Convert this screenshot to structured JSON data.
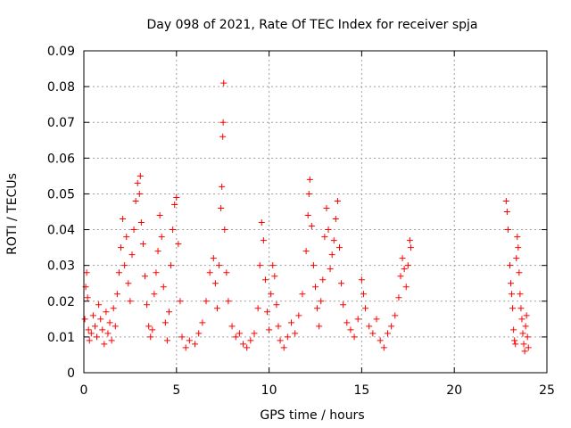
{
  "chart_data": {
    "type": "scatter",
    "title": "Day 098 of 2021, Rate Of TEC Index for receiver spja",
    "xlabel": "GPS time / hours",
    "ylabel": "ROTI / TECUs",
    "xlim": [
      0,
      25
    ],
    "ylim": [
      0,
      0.09
    ],
    "grid": true,
    "marker": "+",
    "colors": {
      "series": "#ff0000",
      "axes": "#000000",
      "grid": "#a0a0a0"
    },
    "x_ticks": [
      "0",
      "5",
      "10",
      "15",
      "20",
      "25"
    ],
    "y_ticks": [
      "0",
      "0.01",
      "0.02",
      "0.03",
      "0.04",
      "0.05",
      "0.06",
      "0.07",
      "0.08",
      "0.09"
    ],
    "series": [
      {
        "name": "ROTI",
        "points": [
          [
            0.05,
            0.015
          ],
          [
            0.1,
            0.024
          ],
          [
            0.15,
            0.028
          ],
          [
            0.2,
            0.021
          ],
          [
            0.25,
            0.012
          ],
          [
            0.3,
            0.009
          ],
          [
            0.4,
            0.011
          ],
          [
            0.5,
            0.016
          ],
          [
            0.6,
            0.013
          ],
          [
            0.7,
            0.01
          ],
          [
            0.8,
            0.019
          ],
          [
            0.9,
            0.015
          ],
          [
            1.0,
            0.012
          ],
          [
            1.1,
            0.008
          ],
          [
            1.2,
            0.017
          ],
          [
            1.3,
            0.011
          ],
          [
            1.4,
            0.014
          ],
          [
            1.5,
            0.009
          ],
          [
            1.6,
            0.018
          ],
          [
            1.7,
            0.013
          ],
          [
            1.8,
            0.022
          ],
          [
            1.9,
            0.028
          ],
          [
            2.0,
            0.035
          ],
          [
            2.1,
            0.043
          ],
          [
            2.2,
            0.03
          ],
          [
            2.3,
            0.038
          ],
          [
            2.4,
            0.025
          ],
          [
            2.5,
            0.02
          ],
          [
            2.6,
            0.033
          ],
          [
            2.7,
            0.04
          ],
          [
            2.8,
            0.048
          ],
          [
            2.9,
            0.053
          ],
          [
            3.0,
            0.05
          ],
          [
            3.05,
            0.055
          ],
          [
            3.1,
            0.042
          ],
          [
            3.2,
            0.036
          ],
          [
            3.3,
            0.027
          ],
          [
            3.4,
            0.019
          ],
          [
            3.5,
            0.013
          ],
          [
            3.6,
            0.01
          ],
          [
            3.7,
            0.012
          ],
          [
            3.8,
            0.022
          ],
          [
            3.9,
            0.028
          ],
          [
            4.0,
            0.034
          ],
          [
            4.1,
            0.044
          ],
          [
            4.2,
            0.038
          ],
          [
            4.3,
            0.024
          ],
          [
            4.4,
            0.014
          ],
          [
            4.5,
            0.009
          ],
          [
            4.6,
            0.017
          ],
          [
            4.7,
            0.03
          ],
          [
            4.8,
            0.04
          ],
          [
            4.9,
            0.047
          ],
          [
            5.0,
            0.049
          ],
          [
            5.1,
            0.036
          ],
          [
            5.2,
            0.02
          ],
          [
            5.3,
            0.01
          ],
          [
            5.5,
            0.007
          ],
          [
            5.7,
            0.009
          ],
          [
            6.0,
            0.008
          ],
          [
            6.2,
            0.011
          ],
          [
            6.4,
            0.014
          ],
          [
            6.6,
            0.02
          ],
          [
            6.8,
            0.028
          ],
          [
            7.0,
            0.032
          ],
          [
            7.1,
            0.025
          ],
          [
            7.2,
            0.018
          ],
          [
            7.3,
            0.03
          ],
          [
            7.4,
            0.046
          ],
          [
            7.45,
            0.052
          ],
          [
            7.5,
            0.066
          ],
          [
            7.52,
            0.07
          ],
          [
            7.55,
            0.081
          ],
          [
            7.6,
            0.04
          ],
          [
            7.7,
            0.028
          ],
          [
            7.8,
            0.02
          ],
          [
            8.0,
            0.013
          ],
          [
            8.2,
            0.01
          ],
          [
            8.4,
            0.011
          ],
          [
            8.6,
            0.008
          ],
          [
            8.8,
            0.007
          ],
          [
            9.0,
            0.009
          ],
          [
            9.2,
            0.011
          ],
          [
            9.4,
            0.018
          ],
          [
            9.5,
            0.03
          ],
          [
            9.6,
            0.042
          ],
          [
            9.7,
            0.037
          ],
          [
            9.8,
            0.026
          ],
          [
            9.9,
            0.017
          ],
          [
            10.0,
            0.012
          ],
          [
            10.1,
            0.022
          ],
          [
            10.2,
            0.03
          ],
          [
            10.3,
            0.027
          ],
          [
            10.4,
            0.019
          ],
          [
            10.5,
            0.013
          ],
          [
            10.6,
            0.009
          ],
          [
            10.8,
            0.007
          ],
          [
            11.0,
            0.01
          ],
          [
            11.2,
            0.014
          ],
          [
            11.4,
            0.011
          ],
          [
            11.6,
            0.016
          ],
          [
            11.8,
            0.022
          ],
          [
            12.0,
            0.034
          ],
          [
            12.1,
            0.044
          ],
          [
            12.15,
            0.05
          ],
          [
            12.2,
            0.054
          ],
          [
            12.3,
            0.041
          ],
          [
            12.4,
            0.03
          ],
          [
            12.5,
            0.024
          ],
          [
            12.6,
            0.018
          ],
          [
            12.7,
            0.013
          ],
          [
            12.8,
            0.02
          ],
          [
            12.9,
            0.026
          ],
          [
            13.0,
            0.038
          ],
          [
            13.1,
            0.046
          ],
          [
            13.2,
            0.04
          ],
          [
            13.3,
            0.029
          ],
          [
            13.4,
            0.033
          ],
          [
            13.5,
            0.037
          ],
          [
            13.6,
            0.043
          ],
          [
            13.7,
            0.048
          ],
          [
            13.8,
            0.035
          ],
          [
            13.9,
            0.025
          ],
          [
            14.0,
            0.019
          ],
          [
            14.2,
            0.014
          ],
          [
            14.4,
            0.012
          ],
          [
            14.6,
            0.01
          ],
          [
            14.8,
            0.015
          ],
          [
            15.0,
            0.026
          ],
          [
            15.1,
            0.022
          ],
          [
            15.2,
            0.018
          ],
          [
            15.4,
            0.013
          ],
          [
            15.6,
            0.011
          ],
          [
            15.8,
            0.015
          ],
          [
            16.0,
            0.009
          ],
          [
            16.2,
            0.007
          ],
          [
            16.4,
            0.011
          ],
          [
            16.6,
            0.013
          ],
          [
            16.8,
            0.016
          ],
          [
            17.0,
            0.021
          ],
          [
            17.1,
            0.027
          ],
          [
            17.2,
            0.032
          ],
          [
            17.3,
            0.029
          ],
          [
            17.4,
            0.024
          ],
          [
            17.5,
            0.03
          ],
          [
            17.6,
            0.037
          ],
          [
            17.65,
            0.035
          ],
          [
            22.8,
            0.048
          ],
          [
            22.85,
            0.045
          ],
          [
            22.9,
            0.04
          ],
          [
            23.0,
            0.03
          ],
          [
            23.05,
            0.025
          ],
          [
            23.1,
            0.022
          ],
          [
            23.15,
            0.018
          ],
          [
            23.2,
            0.012
          ],
          [
            23.25,
            0.009
          ],
          [
            23.3,
            0.008
          ],
          [
            23.35,
            0.032
          ],
          [
            23.4,
            0.038
          ],
          [
            23.45,
            0.035
          ],
          [
            23.5,
            0.028
          ],
          [
            23.55,
            0.022
          ],
          [
            23.6,
            0.018
          ],
          [
            23.65,
            0.015
          ],
          [
            23.7,
            0.011
          ],
          [
            23.75,
            0.008
          ],
          [
            23.8,
            0.006
          ],
          [
            23.85,
            0.013
          ],
          [
            23.9,
            0.016
          ],
          [
            23.95,
            0.01
          ],
          [
            24.0,
            0.007
          ]
        ]
      }
    ]
  }
}
